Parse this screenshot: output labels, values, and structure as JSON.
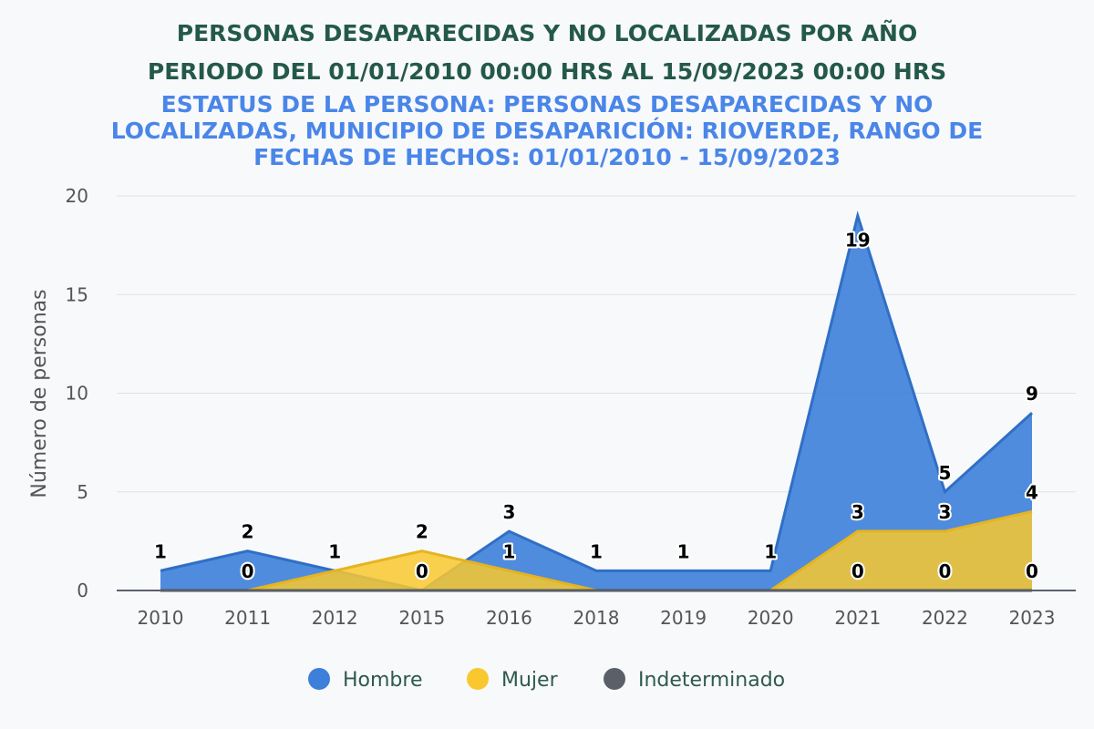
{
  "chart_data": {
    "type": "area",
    "title": "PERSONAS DESAPARECIDAS Y NO LOCALIZADAS POR AÑO",
    "title_line2": "PERIODO DEL 01/01/2010 00:00 HRS AL 15/09/2023 00:00 HRS",
    "subtitle": "ESTATUS DE LA PERSONA: PERSONAS DESAPARECIDAS Y NO LOCALIZADAS, MUNICIPIO DE DESAPARICIÓN: RIOVERDE, RANGO DE FECHAS DE HECHOS: 01/01/2010 - 15/09/2023",
    "ylabel": "Número de personas",
    "xlabel": "",
    "categories": [
      "2010",
      "2011",
      "2012",
      "2015",
      "2016",
      "2018",
      "2019",
      "2020",
      "2021",
      "2022",
      "2023"
    ],
    "ylim": [
      0,
      20
    ],
    "yticks": [
      0,
      5,
      10,
      15,
      20
    ],
    "grid": true,
    "legend_position": "bottom",
    "series": [
      {
        "name": "Hombre",
        "color": "#3d7fd9",
        "values": [
          1,
          2,
          1,
          0,
          3,
          1,
          1,
          1,
          19,
          5,
          9
        ]
      },
      {
        "name": "Mujer",
        "color": "#f9c82f",
        "values": [
          0,
          0,
          1,
          2,
          1,
          0,
          0,
          0,
          3,
          3,
          4
        ]
      },
      {
        "name": "Indeterminado",
        "color": "#5a6068",
        "values": [
          0,
          0,
          0,
          0,
          0,
          0,
          0,
          0,
          0,
          0,
          0
        ]
      }
    ]
  }
}
